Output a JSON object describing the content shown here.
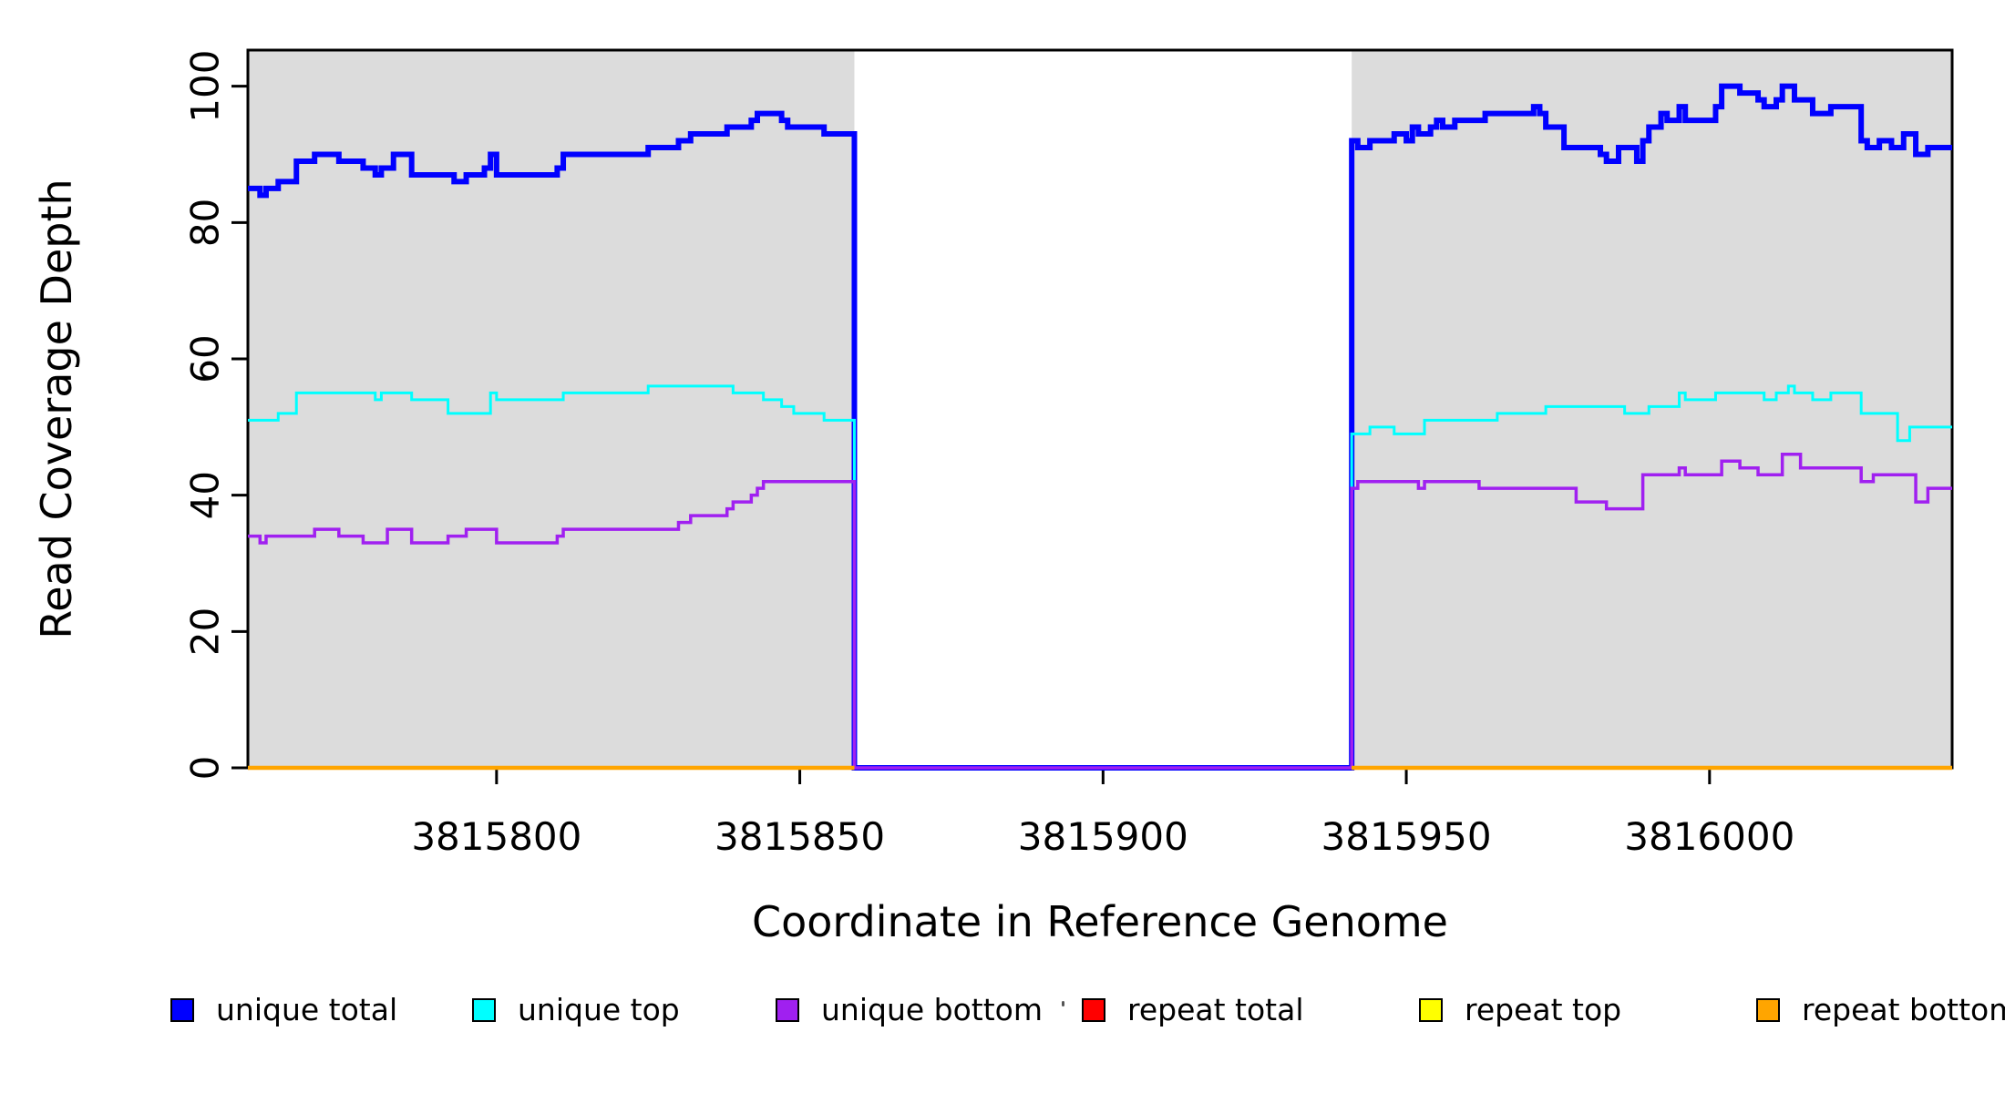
{
  "chart_data": {
    "type": "line",
    "subtype": "step-after-coverage",
    "title": "",
    "xlabel": "Coordinate in Reference Genome",
    "ylabel": "Read Coverage Depth",
    "xlim": [
      3815759,
      3816040
    ],
    "ylim": [
      0,
      105.3
    ],
    "x_ticks": [
      {
        "value": 3815800,
        "label": "3815800"
      },
      {
        "value": 3815850,
        "label": "3815850"
      },
      {
        "value": 3815900,
        "label": "3815900"
      },
      {
        "value": 3815950,
        "label": "3815950"
      },
      {
        "value": 3816000,
        "label": "3816000"
      }
    ],
    "y_ticks": [
      {
        "value": 0,
        "label": "0"
      },
      {
        "value": 20,
        "label": "20"
      },
      {
        "value": 40,
        "label": "40"
      },
      {
        "value": 60,
        "label": "60"
      },
      {
        "value": 80,
        "label": "80"
      },
      {
        "value": 100,
        "label": "100"
      }
    ],
    "grid": false,
    "background_color": "#ffffff",
    "shaded_regions": [
      {
        "x0": 3815759,
        "x1": 3815859,
        "color": "#DCDCDC"
      },
      {
        "x0": 3815941,
        "x1": 3816040,
        "color": "#DCDCDC"
      }
    ],
    "uncovered_gap": {
      "x0": 3815859,
      "x1": 3815941,
      "note": "unique series drop to 0; repeat series not drawn"
    },
    "series": [
      {
        "name": "unique total",
        "color": "#0000FF",
        "stroke_width": 6,
        "segments": [
          {
            "x_end": 3816040,
            "points": [
              [
                3815759,
                85
              ],
              [
                3815761,
                84
              ],
              [
                3815762,
                85
              ],
              [
                3815764,
                86
              ],
              [
                3815767,
                89
              ],
              [
                3815770,
                90
              ],
              [
                3815774,
                89
              ],
              [
                3815778,
                88
              ],
              [
                3815780,
                87
              ],
              [
                3815781,
                88
              ],
              [
                3815783,
                90
              ],
              [
                3815786,
                87
              ],
              [
                3815793,
                86
              ],
              [
                3815795,
                87
              ],
              [
                3815798,
                88
              ],
              [
                3815799,
                90
              ],
              [
                3815800,
                87
              ],
              [
                3815810,
                88
              ],
              [
                3815811,
                90
              ],
              [
                3815825,
                91
              ],
              [
                3815830,
                92
              ],
              [
                3815832,
                93
              ],
              [
                3815838,
                94
              ],
              [
                3815842,
                95
              ],
              [
                3815843,
                96
              ],
              [
                3815847,
                95
              ],
              [
                3815848,
                94
              ],
              [
                3815854,
                93
              ],
              [
                3815859,
                0
              ],
              [
                3815941,
                92
              ],
              [
                3815942,
                91
              ],
              [
                3815944,
                92
              ],
              [
                3815948,
                93
              ],
              [
                3815950,
                92
              ],
              [
                3815951,
                94
              ],
              [
                3815952,
                93
              ],
              [
                3815954,
                94
              ],
              [
                3815955,
                95
              ],
              [
                3815956,
                94
              ],
              [
                3815958,
                95
              ],
              [
                3815963,
                96
              ],
              [
                3815971,
                97
              ],
              [
                3815972,
                96
              ],
              [
                3815973,
                94
              ],
              [
                3815976,
                91
              ],
              [
                3815982,
                90
              ],
              [
                3815983,
                89
              ],
              [
                3815985,
                91
              ],
              [
                3815988,
                89
              ],
              [
                3815989,
                92
              ],
              [
                3815990,
                94
              ],
              [
                3815992,
                96
              ],
              [
                3815993,
                95
              ],
              [
                3815995,
                97
              ],
              [
                3815996,
                95
              ],
              [
                3816001,
                97
              ],
              [
                3816002,
                100
              ],
              [
                3816005,
                99
              ],
              [
                3816008,
                98
              ],
              [
                3816009,
                97
              ],
              [
                3816011,
                98
              ],
              [
                3816012,
                100
              ],
              [
                3816014,
                98
              ],
              [
                3816017,
                96
              ],
              [
                3816020,
                97
              ],
              [
                3816025,
                92
              ],
              [
                3816026,
                91
              ],
              [
                3816028,
                92
              ],
              [
                3816030,
                91
              ],
              [
                3816032,
                93
              ],
              [
                3816034,
                90
              ],
              [
                3816036,
                91
              ]
            ]
          }
        ]
      },
      {
        "name": "unique top",
        "color": "#00FFFF",
        "stroke_width": 3,
        "segments": [
          {
            "x_end": 3816040,
            "points": [
              [
                3815759,
                51
              ],
              [
                3815764,
                52
              ],
              [
                3815767,
                55
              ],
              [
                3815780,
                54
              ],
              [
                3815781,
                55
              ],
              [
                3815786,
                54
              ],
              [
                3815792,
                52
              ],
              [
                3815799,
                55
              ],
              [
                3815800,
                54
              ],
              [
                3815811,
                55
              ],
              [
                3815825,
                56
              ],
              [
                3815839,
                55
              ],
              [
                3815844,
                54
              ],
              [
                3815847,
                53
              ],
              [
                3815849,
                52
              ],
              [
                3815854,
                51
              ],
              [
                3815859,
                0
              ],
              [
                3815941,
                49
              ],
              [
                3815944,
                50
              ],
              [
                3815948,
                49
              ],
              [
                3815953,
                51
              ],
              [
                3815965,
                52
              ],
              [
                3815973,
                53
              ],
              [
                3815986,
                52
              ],
              [
                3815990,
                53
              ],
              [
                3815995,
                55
              ],
              [
                3815996,
                54
              ],
              [
                3816001,
                55
              ],
              [
                3816009,
                54
              ],
              [
                3816011,
                55
              ],
              [
                3816013,
                56
              ],
              [
                3816014,
                55
              ],
              [
                3816017,
                54
              ],
              [
                3816020,
                55
              ],
              [
                3816025,
                52
              ],
              [
                3816031,
                48
              ],
              [
                3816033,
                50
              ]
            ]
          }
        ]
      },
      {
        "name": "unique bottom",
        "color": "#A020F0",
        "stroke_width": 3.5,
        "segments": [
          {
            "x_end": 3816040,
            "points": [
              [
                3815759,
                34
              ],
              [
                3815761,
                33
              ],
              [
                3815762,
                34
              ],
              [
                3815770,
                35
              ],
              [
                3815774,
                34
              ],
              [
                3815778,
                33
              ],
              [
                3815782,
                35
              ],
              [
                3815786,
                33
              ],
              [
                3815792,
                34
              ],
              [
                3815795,
                35
              ],
              [
                3815800,
                33
              ],
              [
                3815810,
                34
              ],
              [
                3815811,
                35
              ],
              [
                3815830,
                36
              ],
              [
                3815832,
                37
              ],
              [
                3815838,
                38
              ],
              [
                3815839,
                39
              ],
              [
                3815842,
                40
              ],
              [
                3815843,
                41
              ],
              [
                3815844,
                42
              ],
              [
                3815859,
                0
              ],
              [
                3815941,
                41
              ],
              [
                3815942,
                42
              ],
              [
                3815952,
                41
              ],
              [
                3815953,
                42
              ],
              [
                3815962,
                41
              ],
              [
                3815978,
                39
              ],
              [
                3815983,
                38
              ],
              [
                3815989,
                43
              ],
              [
                3815995,
                44
              ],
              [
                3815996,
                43
              ],
              [
                3816002,
                45
              ],
              [
                3816005,
                44
              ],
              [
                3816008,
                43
              ],
              [
                3816012,
                46
              ],
              [
                3816015,
                44
              ],
              [
                3816025,
                42
              ],
              [
                3816027,
                43
              ],
              [
                3816034,
                39
              ],
              [
                3816036,
                41
              ]
            ]
          }
        ]
      },
      {
        "name": "repeat total",
        "color": "#FF0000",
        "stroke_width": 3,
        "segments": [
          {
            "x_end": 3815859,
            "points": [
              [
                3815759,
                0
              ]
            ]
          },
          {
            "x_end": 3816040,
            "points": [
              [
                3815941,
                0
              ]
            ]
          }
        ]
      },
      {
        "name": "repeat top",
        "color": "#FFFF00",
        "stroke_width": 3,
        "segments": [
          {
            "x_end": 3815859,
            "points": [
              [
                3815759,
                0
              ]
            ]
          },
          {
            "x_end": 3816040,
            "points": [
              [
                3815941,
                0
              ]
            ]
          }
        ]
      },
      {
        "name": "repeat bottom",
        "color": "#FFA500",
        "stroke_width": 4.5,
        "segments": [
          {
            "x_end": 3815859,
            "points": [
              [
                3815759,
                0
              ]
            ]
          },
          {
            "x_end": 3816040,
            "points": [
              [
                3815941,
                0
              ]
            ]
          }
        ]
      }
    ],
    "legend_position": "bottom"
  },
  "legend": {
    "items": [
      {
        "label": "unique total",
        "color": "#0000FF"
      },
      {
        "label": "unique top",
        "color": "#00FFFF"
      },
      {
        "label": "unique bottom",
        "color": "#A020F0"
      },
      {
        "label": "repeat total",
        "color": "#FF0000"
      },
      {
        "label": "repeat top",
        "color": "#FFFF00"
      },
      {
        "label": "repeat bottom",
        "color": "#FFA500"
      }
    ]
  },
  "axes": {
    "x_title": "Coordinate in Reference Genome",
    "y_title": "Read Coverage Depth"
  }
}
